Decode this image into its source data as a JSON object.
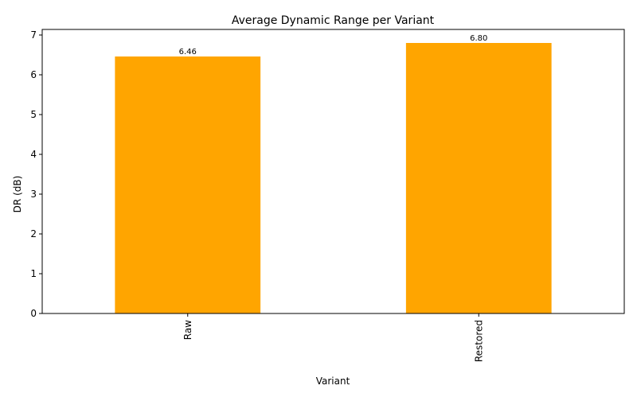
{
  "chart_data": {
    "type": "bar",
    "title": "Average Dynamic Range per Variant",
    "xlabel": "Variant",
    "ylabel": "DR (dB)",
    "categories": [
      "Raw",
      "Restored"
    ],
    "values": [
      6.46,
      6.8
    ],
    "value_labels": [
      "6.46",
      "6.80"
    ],
    "ylim": [
      0,
      7.14
    ],
    "yticks": [
      0,
      1,
      2,
      3,
      4,
      5,
      6,
      7
    ],
    "ytick_labels": [
      "0",
      "1",
      "2",
      "3",
      "4",
      "5",
      "6",
      "7"
    ],
    "bar_color": "#ffa500",
    "grid": false,
    "legend": "none",
    "x_tick_rotation": "vertical"
  }
}
